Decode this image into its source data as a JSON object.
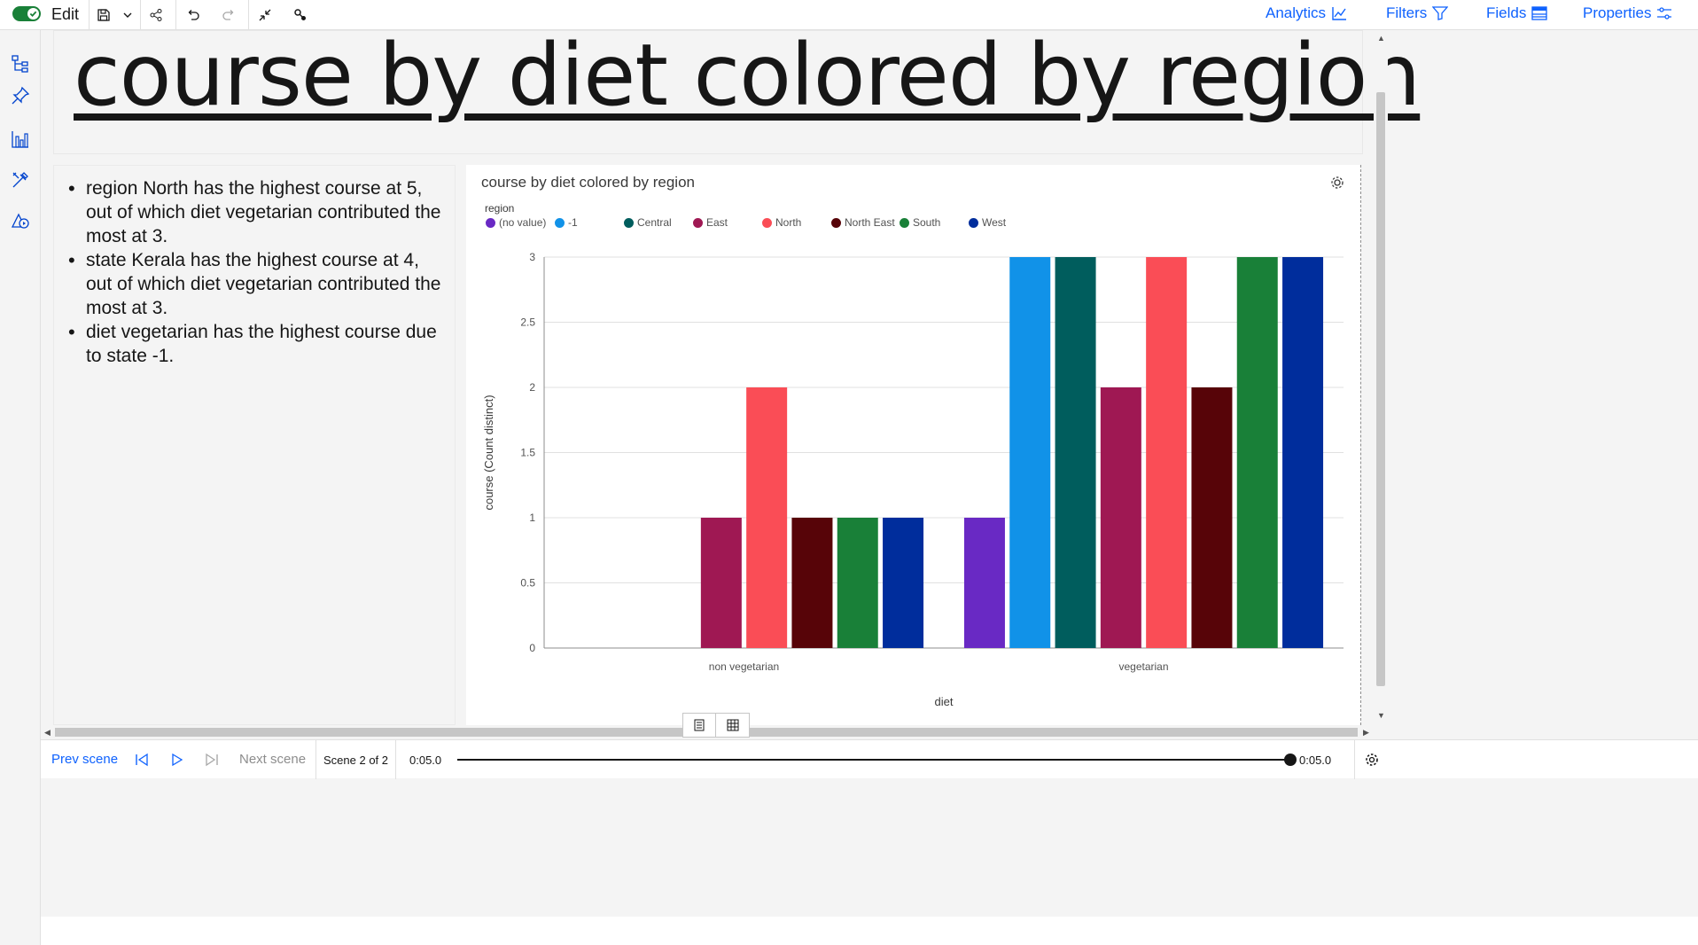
{
  "toolbar": {
    "mode_label": "Edit",
    "right_links": [
      {
        "label": "Analytics",
        "icon": "analytics-icon"
      },
      {
        "label": "Filters",
        "icon": "filter-icon"
      },
      {
        "label": "Fields",
        "icon": "fields-icon"
      },
      {
        "label": "Properties",
        "icon": "properties-icon"
      }
    ],
    "accent_color": "#0f62fe",
    "toggle_color": "#198038"
  },
  "rail": {
    "icons": [
      "hierarchy-icon",
      "pin-icon",
      "bar-chart-icon",
      "tools-icon",
      "shapes-icon"
    ]
  },
  "scene": {
    "title": "course by diet colored by region"
  },
  "insights": [
    "region North has the highest course at 5, out of which diet vegetarian contributed the most at 3.",
    "state Kerala has the highest course at 4, out of which diet vegetarian contributed the most at 3.",
    "diet vegetarian has the highest course due to state -1."
  ],
  "chart_data": {
    "type": "bar",
    "title": "course by diet colored by region",
    "xlabel": "diet",
    "ylabel": "course (Count distinct)",
    "categories": [
      "non vegetarian",
      "vegetarian"
    ],
    "ylim": [
      0,
      3
    ],
    "yticks": [
      "0",
      "0.5",
      "1",
      "1.5",
      "2",
      "2.5",
      "3"
    ],
    "legend_title": "region",
    "legend_position": "top-left",
    "grid": true,
    "series": [
      {
        "name": "(no value)",
        "color": "#6929c4",
        "values": [
          0,
          1
        ]
      },
      {
        "name": "-1",
        "color": "#1192e8",
        "values": [
          0,
          3
        ]
      },
      {
        "name": "Central",
        "color": "#005d5d",
        "values": [
          0,
          3
        ]
      },
      {
        "name": "East",
        "color": "#9f1853",
        "values": [
          1,
          2
        ]
      },
      {
        "name": "North",
        "color": "#fa4d56",
        "values": [
          2,
          3
        ]
      },
      {
        "name": "North East",
        "color": "#570408",
        "values": [
          1,
          2
        ]
      },
      {
        "name": "South",
        "color": "#198038",
        "values": [
          1,
          3
        ]
      },
      {
        "name": "West",
        "color": "#002d9c",
        "values": [
          1,
          3
        ]
      }
    ]
  },
  "bottom": {
    "prev_label": "Prev scene",
    "next_label": "Next scene",
    "scene_counter": "Scene 2 of 2",
    "time_start": "0:05.0",
    "time_end": "0:05.0"
  }
}
